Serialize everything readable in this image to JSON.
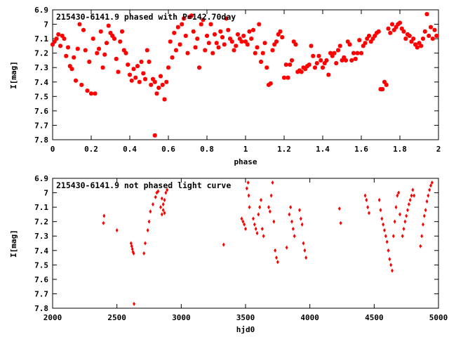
{
  "chart_data": [
    {
      "type": "scatter",
      "title": "215430-6141.9 phased with P=142.70day",
      "xlabel": "phase",
      "ylabel": "I[mag]",
      "xlim": [
        0,
        2
      ],
      "ylim": [
        6.9,
        7.8
      ],
      "y_inverted": true,
      "xticks": [
        "0",
        "0.2",
        "0.4",
        "0.6",
        "0.8",
        "1",
        "1.2",
        "1.4",
        "1.6",
        "1.8",
        "2"
      ],
      "yticks": [
        "6.9",
        "7",
        "7.1",
        "7.2",
        "7.3",
        "7.4",
        "7.5",
        "7.6",
        "7.7",
        "7.8"
      ],
      "marker_color": "#ff0000",
      "marker": "star",
      "points": [
        [
          0.0,
          7.14
        ],
        [
          0.01,
          7.12
        ],
        [
          0.02,
          7.1
        ],
        [
          0.03,
          7.07
        ],
        [
          0.04,
          7.15
        ],
        [
          0.05,
          7.08
        ],
        [
          0.06,
          7.1
        ],
        [
          0.07,
          7.22
        ],
        [
          0.08,
          7.16
        ],
        [
          0.09,
          7.29
        ],
        [
          0.1,
          7.31
        ],
        [
          0.11,
          7.23
        ],
        [
          0.12,
          7.39
        ],
        [
          0.13,
          7.17
        ],
        [
          0.14,
          7.0
        ],
        [
          0.15,
          7.42
        ],
        [
          0.16,
          7.04
        ],
        [
          0.17,
          7.18
        ],
        [
          0.18,
          7.46
        ],
        [
          0.19,
          7.26
        ],
        [
          0.2,
          7.48
        ],
        [
          0.21,
          7.1
        ],
        [
          0.22,
          7.48
        ],
        [
          0.23,
          7.2
        ],
        [
          0.24,
          7.17
        ],
        [
          0.25,
          7.05
        ],
        [
          0.26,
          7.3
        ],
        [
          0.27,
          7.21
        ],
        [
          0.28,
          7.13
        ],
        [
          0.29,
          7.01
        ],
        [
          0.3,
          7.06
        ],
        [
          0.31,
          7.08
        ],
        [
          0.32,
          7.1
        ],
        [
          0.33,
          7.24
        ],
        [
          0.34,
          7.33
        ],
        [
          0.35,
          7.12
        ],
        [
          0.36,
          7.05
        ],
        [
          0.37,
          7.18
        ],
        [
          0.38,
          7.2
        ],
        [
          0.39,
          7.28
        ],
        [
          0.4,
          7.35
        ],
        [
          0.41,
          7.39
        ],
        [
          0.42,
          7.31
        ],
        [
          0.43,
          7.37
        ],
        [
          0.44,
          7.29
        ],
        [
          0.45,
          7.4
        ],
        [
          0.46,
          7.26
        ],
        [
          0.47,
          7.34
        ],
        [
          0.48,
          7.38
        ],
        [
          0.49,
          7.18
        ],
        [
          0.5,
          7.26
        ],
        [
          0.51,
          7.42
        ],
        [
          0.52,
          7.38
        ],
        [
          0.53,
          7.4
        ],
        [
          0.54,
          7.48
        ],
        [
          0.55,
          7.44
        ],
        [
          0.56,
          7.36
        ],
        [
          0.57,
          7.42
        ],
        [
          0.58,
          7.52
        ],
        [
          0.59,
          7.4
        ],
        [
          0.53,
          7.77
        ],
        [
          0.6,
          7.3
        ],
        [
          0.61,
          7.12
        ],
        [
          0.62,
          7.23
        ],
        [
          0.63,
          7.06
        ],
        [
          0.64,
          7.18
        ],
        [
          0.65,
          7.02
        ],
        [
          0.66,
          7.14
        ],
        [
          0.67,
          7.0
        ],
        [
          0.68,
          6.96
        ],
        [
          0.69,
          7.08
        ],
        [
          0.7,
          7.2
        ],
        [
          0.71,
          6.95
        ],
        [
          0.72,
          6.94
        ],
        [
          0.73,
          7.05
        ],
        [
          0.74,
          7.16
        ],
        [
          0.75,
          7.1
        ],
        [
          0.76,
          7.3
        ],
        [
          0.77,
          7.0
        ],
        [
          0.78,
          6.97
        ],
        [
          0.79,
          7.18
        ],
        [
          0.8,
          7.08
        ],
        [
          0.81,
          7.13
        ],
        [
          0.82,
          7.0
        ],
        [
          0.83,
          7.2
        ],
        [
          0.84,
          7.07
        ],
        [
          0.85,
          7.13
        ],
        [
          0.86,
          7.16
        ],
        [
          0.87,
          7.05
        ],
        [
          0.88,
          7.09
        ],
        [
          0.89,
          7.14
        ],
        [
          0.9,
          6.96
        ],
        [
          0.91,
          7.04
        ],
        [
          0.92,
          7.1
        ],
        [
          0.93,
          7.12
        ],
        [
          0.94,
          7.18
        ],
        [
          0.95,
          7.15
        ],
        [
          0.96,
          7.07
        ],
        [
          0.97,
          7.1
        ],
        [
          0.98,
          7.12
        ],
        [
          0.99,
          7.08
        ],
        [
          1.0,
          7.12
        ],
        [
          1.01,
          7.14
        ],
        [
          1.02,
          7.05
        ],
        [
          1.03,
          7.1
        ],
        [
          1.04,
          7.04
        ],
        [
          1.05,
          7.2
        ],
        [
          1.06,
          7.16
        ],
        [
          1.07,
          7.0
        ],
        [
          1.08,
          7.26
        ],
        [
          1.09,
          7.2
        ],
        [
          1.1,
          7.13
        ],
        [
          1.11,
          7.3
        ],
        [
          1.12,
          7.42
        ],
        [
          1.13,
          7.41
        ],
        [
          1.14,
          7.18
        ],
        [
          1.15,
          7.14
        ],
        [
          1.16,
          7.12
        ],
        [
          1.17,
          7.07
        ],
        [
          1.18,
          7.05
        ],
        [
          1.19,
          7.09
        ],
        [
          1.2,
          7.37
        ],
        [
          1.21,
          7.28
        ],
        [
          1.22,
          7.37
        ],
        [
          1.23,
          7.28
        ],
        [
          1.24,
          7.25
        ],
        [
          1.25,
          7.12
        ],
        [
          1.26,
          7.14
        ],
        [
          1.27,
          7.33
        ],
        [
          1.28,
          7.32
        ],
        [
          1.29,
          7.33
        ],
        [
          1.3,
          7.3
        ],
        [
          1.31,
          7.31
        ],
        [
          1.32,
          7.29
        ],
        [
          1.33,
          7.28
        ],
        [
          1.34,
          7.15
        ],
        [
          1.35,
          7.22
        ],
        [
          1.36,
          7.3
        ],
        [
          1.37,
          7.27
        ],
        [
          1.38,
          7.22
        ],
        [
          1.39,
          7.25
        ],
        [
          1.4,
          7.3
        ],
        [
          1.41,
          7.27
        ],
        [
          1.42,
          7.25
        ],
        [
          1.43,
          7.35
        ],
        [
          1.44,
          7.2
        ],
        [
          1.45,
          7.22
        ],
        [
          1.46,
          7.2
        ],
        [
          1.47,
          7.27
        ],
        [
          1.48,
          7.18
        ],
        [
          1.49,
          7.15
        ],
        [
          1.5,
          7.25
        ],
        [
          1.51,
          7.23
        ],
        [
          1.52,
          7.25
        ],
        [
          1.53,
          7.12
        ],
        [
          1.54,
          7.14
        ],
        [
          1.55,
          7.25
        ],
        [
          1.56,
          7.2
        ],
        [
          1.57,
          7.24
        ],
        [
          1.58,
          7.2
        ],
        [
          1.59,
          7.11
        ],
        [
          1.6,
          7.2
        ],
        [
          1.61,
          7.15
        ],
        [
          1.62,
          7.13
        ],
        [
          1.63,
          7.1
        ],
        [
          1.64,
          7.08
        ],
        [
          1.65,
          7.12
        ],
        [
          1.66,
          7.1
        ],
        [
          1.67,
          7.08
        ],
        [
          1.68,
          7.06
        ],
        [
          1.69,
          7.05
        ],
        [
          1.7,
          7.45
        ],
        [
          1.71,
          7.45
        ],
        [
          1.72,
          7.4
        ],
        [
          1.73,
          7.42
        ],
        [
          1.74,
          7.03
        ],
        [
          1.75,
          7.06
        ],
        [
          1.76,
          7.0
        ],
        [
          1.77,
          7.04
        ],
        [
          1.78,
          7.02
        ],
        [
          1.79,
          7.0
        ],
        [
          1.8,
          6.99
        ],
        [
          1.81,
          7.03
        ],
        [
          1.82,
          7.05
        ],
        [
          1.83,
          7.1
        ],
        [
          1.84,
          7.07
        ],
        [
          1.85,
          7.08
        ],
        [
          1.86,
          7.12
        ],
        [
          1.87,
          7.1
        ],
        [
          1.88,
          7.14
        ],
        [
          1.89,
          7.16
        ],
        [
          1.9,
          7.13
        ],
        [
          1.91,
          7.15
        ],
        [
          1.92,
          7.1
        ],
        [
          1.93,
          7.05
        ],
        [
          1.94,
          6.93
        ],
        [
          1.95,
          7.08
        ],
        [
          1.96,
          7.02
        ],
        [
          1.97,
          7.1
        ],
        [
          1.98,
          7.04
        ],
        [
          1.99,
          7.08
        ]
      ]
    },
    {
      "type": "scatter",
      "title": "215430-6141.9 not phased light curve",
      "xlabel": "hjd0",
      "ylabel": "I[mag]",
      "xlim": [
        2000,
        5000
      ],
      "ylim": [
        6.9,
        7.8
      ],
      "y_inverted": true,
      "xticks": [
        "2000",
        "2500",
        "3000",
        "3500",
        "4000",
        "4500",
        "5000"
      ],
      "yticks": [
        "6.9",
        "7",
        "7.1",
        "7.2",
        "7.3",
        "7.4",
        "7.5",
        "7.6",
        "7.7",
        "7.8"
      ],
      "marker_color": "#ff0000",
      "marker": "diamond",
      "points": [
        [
          2395,
          7.21
        ],
        [
          2400,
          7.16
        ],
        [
          2500,
          7.26
        ],
        [
          2610,
          7.35
        ],
        [
          2615,
          7.37
        ],
        [
          2620,
          7.39
        ],
        [
          2625,
          7.41
        ],
        [
          2630,
          7.42
        ],
        [
          2633,
          7.77
        ],
        [
          2710,
          7.42
        ],
        [
          2720,
          7.35
        ],
        [
          2740,
          7.26
        ],
        [
          2750,
          7.2
        ],
        [
          2760,
          7.13
        ],
        [
          2780,
          7.08
        ],
        [
          2800,
          7.03
        ],
        [
          2810,
          7.0
        ],
        [
          2820,
          6.99
        ],
        [
          2840,
          7.1
        ],
        [
          2850,
          7.15
        ],
        [
          2860,
          7.08
        ],
        [
          2870,
          7.05
        ],
        [
          2880,
          7.0
        ],
        [
          2890,
          6.98
        ],
        [
          2850,
          7.04
        ],
        [
          2860,
          7.12
        ],
        [
          2870,
          7.14
        ],
        [
          3330,
          7.36
        ],
        [
          3470,
          7.18
        ],
        [
          3480,
          7.2
        ],
        [
          3490,
          7.22
        ],
        [
          3500,
          7.25
        ],
        [
          3510,
          6.97
        ],
        [
          3520,
          6.93
        ],
        [
          3525,
          7.02
        ],
        [
          3530,
          7.1
        ],
        [
          3560,
          7.18
        ],
        [
          3570,
          7.22
        ],
        [
          3580,
          7.25
        ],
        [
          3590,
          7.28
        ],
        [
          3600,
          7.15
        ],
        [
          3610,
          7.1
        ],
        [
          3620,
          7.05
        ],
        [
          3630,
          7.25
        ],
        [
          3640,
          7.3
        ],
        [
          3680,
          7.1
        ],
        [
          3690,
          7.13
        ],
        [
          3700,
          7.02
        ],
        [
          3710,
          6.93
        ],
        [
          3720,
          7.2
        ],
        [
          3730,
          7.4
        ],
        [
          3740,
          7.45
        ],
        [
          3750,
          7.48
        ],
        [
          3820,
          7.38
        ],
        [
          3840,
          7.15
        ],
        [
          3850,
          7.1
        ],
        [
          3860,
          7.2
        ],
        [
          3870,
          7.25
        ],
        [
          3880,
          7.3
        ],
        [
          3920,
          7.12
        ],
        [
          3930,
          7.18
        ],
        [
          3940,
          7.22
        ],
        [
          3950,
          7.35
        ],
        [
          3960,
          7.4
        ],
        [
          3970,
          7.45
        ],
        [
          4230,
          7.11
        ],
        [
          4240,
          7.21
        ],
        [
          4430,
          7.02
        ],
        [
          4440,
          7.05
        ],
        [
          4450,
          7.1
        ],
        [
          4460,
          7.14
        ],
        [
          4540,
          7.05
        ],
        [
          4550,
          7.12
        ],
        [
          4560,
          7.18
        ],
        [
          4570,
          7.22
        ],
        [
          4580,
          7.26
        ],
        [
          4590,
          7.3
        ],
        [
          4600,
          7.34
        ],
        [
          4610,
          7.4
        ],
        [
          4620,
          7.46
        ],
        [
          4630,
          7.5
        ],
        [
          4640,
          7.54
        ],
        [
          4650,
          7.3
        ],
        [
          4660,
          7.2
        ],
        [
          4670,
          7.1
        ],
        [
          4680,
          7.02
        ],
        [
          4690,
          7.0
        ],
        [
          4700,
          7.15
        ],
        [
          4720,
          7.3
        ],
        [
          4730,
          7.25
        ],
        [
          4740,
          7.2
        ],
        [
          4750,
          7.16
        ],
        [
          4760,
          7.12
        ],
        [
          4770,
          7.08
        ],
        [
          4780,
          7.05
        ],
        [
          4790,
          7.02
        ],
        [
          4800,
          6.98
        ],
        [
          4810,
          7.02
        ],
        [
          4860,
          7.37
        ],
        [
          4870,
          7.3
        ],
        [
          4880,
          7.22
        ],
        [
          4890,
          7.16
        ],
        [
          4900,
          7.12
        ],
        [
          4910,
          7.06
        ],
        [
          4920,
          7.02
        ],
        [
          4930,
          6.98
        ],
        [
          4940,
          6.95
        ],
        [
          4950,
          6.93
        ]
      ]
    }
  ]
}
